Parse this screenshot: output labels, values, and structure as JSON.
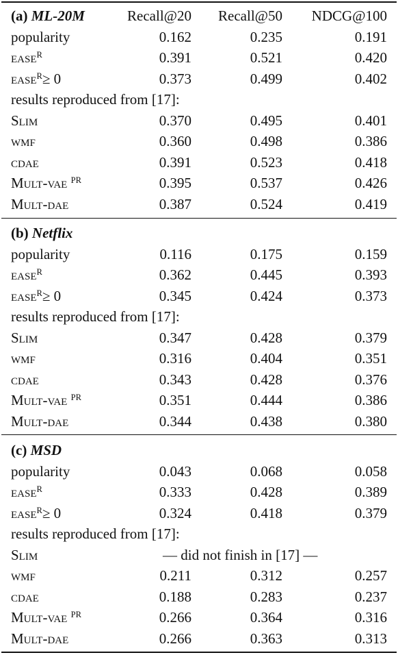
{
  "header": {
    "col1": "Recall@20",
    "col2": "Recall@50",
    "col3": "NDCG@100"
  },
  "sections": [
    {
      "tag": "(a)",
      "name": "ML-20M",
      "rows": [
        {
          "method": "popularity",
          "v": [
            "0.162",
            "0.235",
            "0.191"
          ]
        },
        {
          "method": "ease",
          "sup": "R",
          "suffix": "",
          "v": [
            "0.391",
            "0.521",
            "0.420"
          ]
        },
        {
          "method": "ease",
          "sup": "R",
          "suffix": "≥ 0",
          "v": [
            "0.373",
            "0.499",
            "0.402"
          ]
        },
        {
          "note": "results reproduced from [17]:"
        },
        {
          "method": "Slim",
          "v": [
            "0.370",
            "0.495",
            "0.401"
          ]
        },
        {
          "method": "wmf",
          "v": [
            "0.360",
            "0.498",
            "0.386"
          ]
        },
        {
          "method": "cdae",
          "v": [
            "0.391",
            "0.523",
            "0.418"
          ]
        },
        {
          "method": "Mult-vae",
          "sup": "PR",
          "v": [
            "0.395",
            "0.537",
            "0.426"
          ]
        },
        {
          "method": "Mult-dae",
          "v": [
            "0.387",
            "0.524",
            "0.419"
          ]
        }
      ]
    },
    {
      "tag": "(b)",
      "name": "Netflix",
      "rows": [
        {
          "method": "popularity",
          "v": [
            "0.116",
            "0.175",
            "0.159"
          ]
        },
        {
          "method": "ease",
          "sup": "R",
          "suffix": "",
          "v": [
            "0.362",
            "0.445",
            "0.393"
          ]
        },
        {
          "method": "ease",
          "sup": "R",
          "suffix": "≥ 0",
          "v": [
            "0.345",
            "0.424",
            "0.373"
          ]
        },
        {
          "note": "results reproduced from [17]:"
        },
        {
          "method": "Slim",
          "v": [
            "0.347",
            "0.428",
            "0.379"
          ]
        },
        {
          "method": "wmf",
          "v": [
            "0.316",
            "0.404",
            "0.351"
          ]
        },
        {
          "method": "cdae",
          "v": [
            "0.343",
            "0.428",
            "0.376"
          ]
        },
        {
          "method": "Mult-vae",
          "sup": "PR",
          "v": [
            "0.351",
            "0.444",
            "0.386"
          ]
        },
        {
          "method": "Mult-dae",
          "v": [
            "0.344",
            "0.438",
            "0.380"
          ]
        }
      ]
    },
    {
      "tag": "(c)",
      "name": "MSD",
      "rows": [
        {
          "method": "popularity",
          "v": [
            "0.043",
            "0.068",
            "0.058"
          ]
        },
        {
          "method": "ease",
          "sup": "R",
          "suffix": "",
          "v": [
            "0.333",
            "0.428",
            "0.389"
          ]
        },
        {
          "method": "ease",
          "sup": "R",
          "suffix": "≥ 0",
          "v": [
            "0.324",
            "0.418",
            "0.379"
          ]
        },
        {
          "note": "results reproduced from [17]:"
        },
        {
          "method": "Slim",
          "span": "— did not finish in [17] —"
        },
        {
          "method": "wmf",
          "v": [
            "0.211",
            "0.312",
            "0.257"
          ]
        },
        {
          "method": "cdae",
          "v": [
            "0.188",
            "0.283",
            "0.237"
          ]
        },
        {
          "method": "Mult-vae",
          "sup": "PR",
          "v": [
            "0.266",
            "0.364",
            "0.316"
          ]
        },
        {
          "method": "Mult-dae",
          "v": [
            "0.266",
            "0.363",
            "0.313"
          ]
        }
      ]
    }
  ]
}
